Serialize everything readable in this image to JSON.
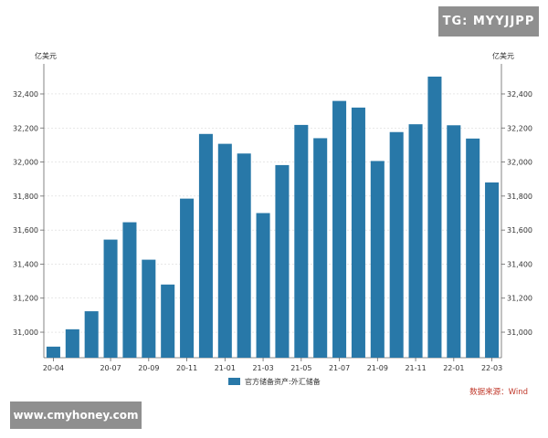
{
  "watermarks": {
    "top": "TG: MYYJJPP",
    "bottom": "www.cmyhoney.com"
  },
  "chart_data": {
    "type": "bar",
    "title": "",
    "unit_left": "亿美元",
    "unit_right": "亿美元",
    "categories": [
      "20-04",
      "20-05",
      "20-06",
      "20-07",
      "20-08",
      "20-09",
      "20-10",
      "20-11",
      "20-12",
      "21-01",
      "21-02",
      "21-03",
      "21-04",
      "21-05",
      "21-06",
      "21-07",
      "21-08",
      "21-09",
      "21-10",
      "21-11",
      "21-12",
      "22-01",
      "22-02",
      "22-03"
    ],
    "x_tick_labels": [
      {
        "index": 0,
        "label": "20-04"
      },
      {
        "index": 3,
        "label": "20-07"
      },
      {
        "index": 5,
        "label": "20-09"
      },
      {
        "index": 7,
        "label": "20-11"
      },
      {
        "index": 9,
        "label": "21-01"
      },
      {
        "index": 11,
        "label": "21-03"
      },
      {
        "index": 13,
        "label": "21-05"
      },
      {
        "index": 15,
        "label": "21-07"
      },
      {
        "index": 17,
        "label": "21-09"
      },
      {
        "index": 19,
        "label": "21-11"
      },
      {
        "index": 21,
        "label": "22-01"
      },
      {
        "index": 23,
        "label": "22-03"
      }
    ],
    "series": [
      {
        "name": "官方储备资产:外汇储备",
        "color": "#2878a8",
        "values": [
          30915,
          31017,
          31123,
          31544,
          31646,
          31426,
          31280,
          31785,
          32165,
          32107,
          32050,
          31700,
          31982,
          32218,
          32140,
          32359,
          32320,
          32006,
          32176,
          32222,
          32502,
          32216,
          32138,
          31880
        ]
      }
    ],
    "ylim": [
      30850,
      32550
    ],
    "y_ticks": [
      31000,
      31200,
      31400,
      31600,
      31800,
      32000,
      32200,
      32400
    ],
    "y_tick_labels": [
      "31,000",
      "31,200",
      "31,400",
      "31,600",
      "31,800",
      "32,000",
      "32,200",
      "32,400"
    ],
    "grid": true,
    "legend_position": "bottom-center",
    "source": "数据来源：Wind"
  }
}
